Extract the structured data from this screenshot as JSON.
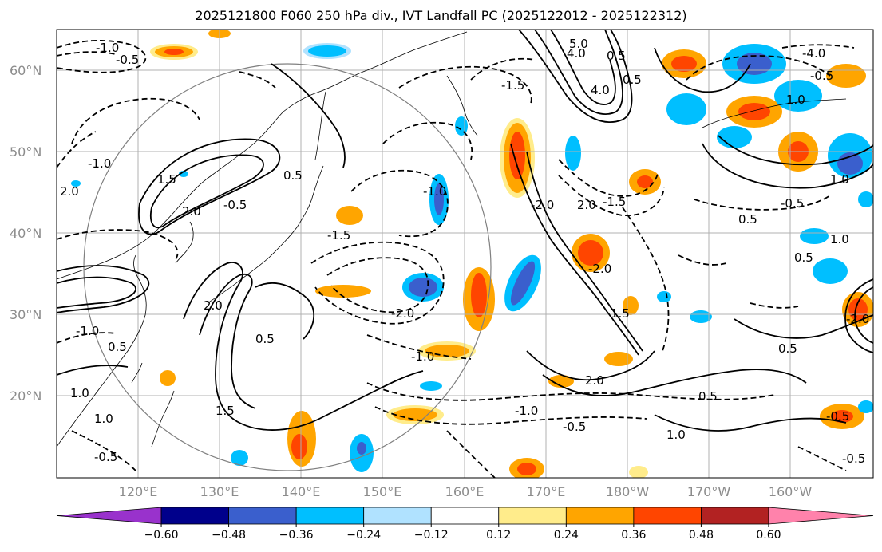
{
  "title": "2025121800 F060 250 hPa div., IVT Landfall PC (2025122012 - 2025122312)",
  "map": {
    "lat_labels": [
      "20°N",
      "30°N",
      "40°N",
      "50°N",
      "60°N"
    ],
    "lon_labels": [
      "120°E",
      "130°E",
      "140°E",
      "150°E",
      "160°E",
      "170°E",
      "180°W",
      "170°W",
      "160°W"
    ],
    "contour_labels": [
      "-1.0",
      "-0.5",
      "5.0",
      "4.0",
      "0.5",
      "-4.0",
      "-0.5",
      "-1.5",
      "0.5",
      "4.0",
      "1.0",
      "1.0",
      "1.5",
      "2.0",
      "-0.5",
      "0.5",
      "-1.0",
      "-2.0",
      "2.0",
      "-2.0",
      "-1.5",
      "0.5",
      "-0.5",
      "1.0",
      "0.5",
      "1.5",
      "-1.5",
      "-2.0",
      "2.0",
      "-1.0",
      "-1.0",
      "-0.5",
      "1.5",
      "2.0",
      "1.0",
      "0.5",
      "0.5",
      "-0.5",
      "0.5",
      "1.0",
      "-0.5",
      "-0.5",
      "1.0",
      "-2.0",
      "-1.0",
      "2.0",
      "-1.0",
      "0.5"
    ]
  },
  "colorbar": {
    "ticks": [
      "−0.60",
      "−0.48",
      "−0.36",
      "−0.24",
      "−0.12",
      "0.12",
      "0.24",
      "0.36",
      "0.48",
      "0.60"
    ],
    "colors": [
      "#9932CC",
      "#00008B",
      "#3A5FCD",
      "#00BFFF",
      "#B0E2FF",
      "#FFFFFF",
      "#FFEC8B",
      "#FFA500",
      "#FF4500",
      "#B22222",
      "#FF82AB"
    ]
  },
  "fill_colors": {
    "light_blue": "#B0E2FF",
    "sky": "#00BFFF",
    "blue": "#3A5FCD",
    "navy": "#00008B",
    "yellow": "#FFEC8B",
    "orange": "#FFA500",
    "red": "#FF4500"
  }
}
